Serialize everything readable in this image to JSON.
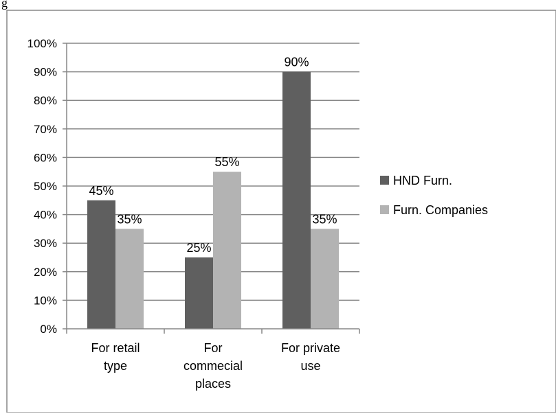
{
  "fragment_text": "g",
  "chart_data": {
    "type": "bar",
    "categories": [
      [
        "For retail",
        "type"
      ],
      [
        "For",
        "commecial",
        "places"
      ],
      [
        "For private",
        "use"
      ]
    ],
    "series": [
      {
        "name": "HND Furn.",
        "values": [
          45,
          25,
          90
        ],
        "labels": [
          "45%",
          "25%",
          "90%"
        ],
        "color": "#5f5f5f"
      },
      {
        "name": "Furn. Companies",
        "values": [
          35,
          55,
          35
        ],
        "labels": [
          "35%",
          "55%",
          "35%"
        ],
        "color": "#b3b3b3"
      }
    ],
    "yticks": [
      "0%",
      "10%",
      "20%",
      "30%",
      "40%",
      "50%",
      "60%",
      "70%",
      "80%",
      "90%",
      "100%"
    ],
    "ylim": [
      0,
      100
    ],
    "grid": true,
    "legend_position": "right",
    "gridline_color": "#878787",
    "axis_color": "#878787",
    "border_color": "#878787"
  }
}
